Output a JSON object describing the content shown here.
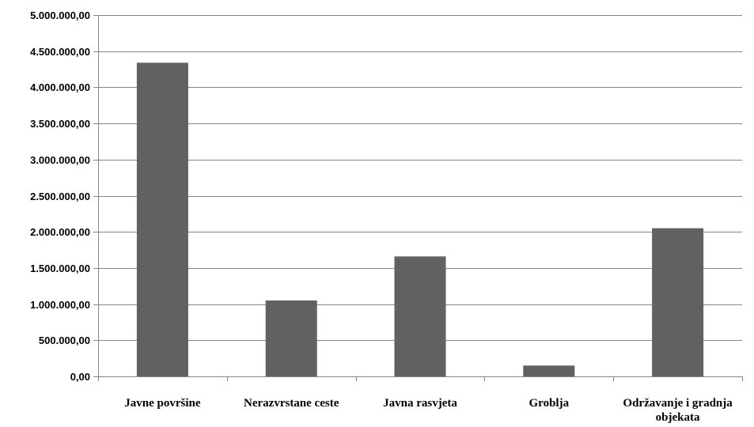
{
  "chart_data": {
    "type": "bar",
    "categories": [
      [
        "Javne površine"
      ],
      [
        "Nerazvrstane ceste"
      ],
      [
        "Javna rasvjeta"
      ],
      [
        "Groblja"
      ],
      [
        "Održavanje i gradnja",
        "objekata"
      ]
    ],
    "values": [
      4340000,
      1050000,
      1660000,
      150000,
      2050000
    ],
    "yticks": [
      "0,00",
      "500.000,00",
      "1.000.000,00",
      "1.500.000,00",
      "2.000.000,00",
      "2.500.000,00",
      "3.000.000,00",
      "3.500.000,00",
      "4.000.000,00",
      "4.500.000,00",
      "5.000.000,00"
    ],
    "ylim": [
      0,
      5000000
    ],
    "grid": true,
    "title": "",
    "xlabel": "",
    "ylabel": "",
    "colors": {
      "bar": "#616161",
      "gridline": "#868686"
    }
  }
}
